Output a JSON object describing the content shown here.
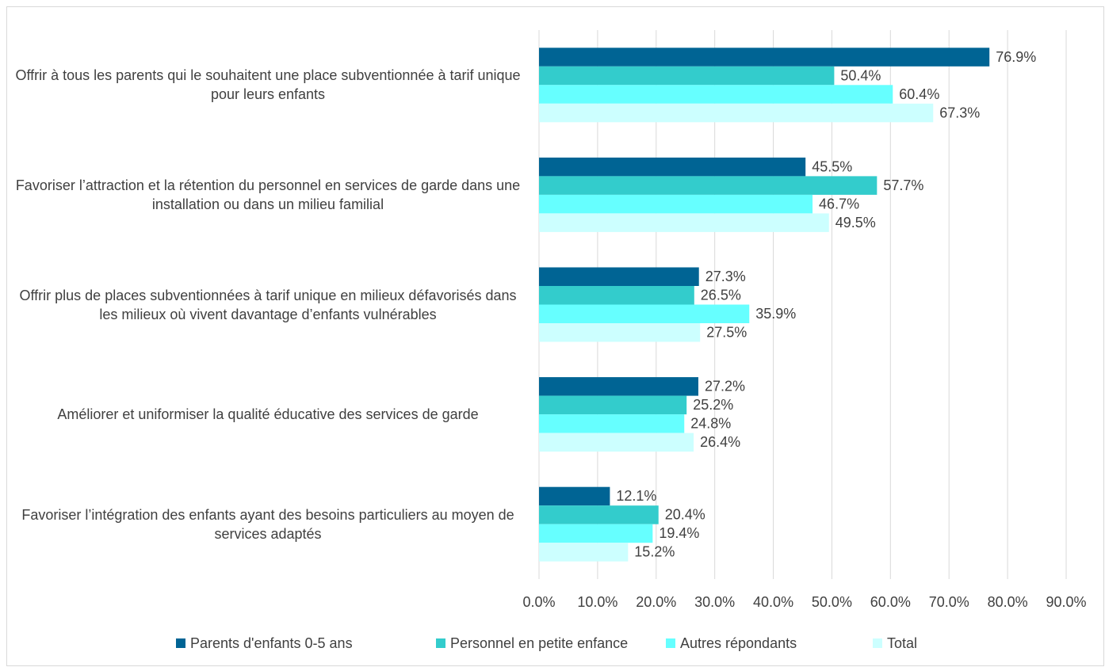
{
  "chart_data": {
    "type": "bar",
    "orientation": "horizontal",
    "categories": [
      "Offrir à tous les parents qui le souhaitent une place subventionnée à tarif unique pour leurs enfants",
      "Favoriser l’attraction et la rétention du personnel en services de garde dans une installation ou dans un milieu familial",
      "Offrir plus de places subventionnées à tarif unique en milieux défavorisés dans les milieux où vivent davantage d’enfants vulnérables",
      "Améliorer et uniformiser la qualité éducative des services de garde",
      "Favoriser l’intégration des enfants ayant des besoins particuliers au moyen de services adaptés"
    ],
    "series": [
      {
        "name": "Parents d'enfants 0-5 ans",
        "color": "#006494",
        "values": [
          76.9,
          45.5,
          27.3,
          27.2,
          12.1
        ],
        "value_labels": [
          "76.9%",
          "45.5%",
          "27.3%",
          "27.2%",
          "12.1%"
        ]
      },
      {
        "name": "Personnel en petite enfance",
        "color": "#33CCCC",
        "values": [
          50.4,
          57.7,
          26.5,
          25.2,
          20.4
        ],
        "value_labels": [
          "50.4%",
          "57.7%",
          "26.5%",
          "25.2%",
          "20.4%"
        ]
      },
      {
        "name": "Autres répondants",
        "color": "#66FFFF",
        "values": [
          60.4,
          46.7,
          35.9,
          24.8,
          19.4
        ],
        "value_labels": [
          "60.4%",
          "46.7%",
          "35.9%",
          "24.8%",
          "19.4%"
        ]
      },
      {
        "name": "Total",
        "color": "#CCFFFF",
        "values": [
          67.3,
          49.5,
          27.5,
          26.4,
          15.2
        ],
        "value_labels": [
          "67.3%",
          "49.5%",
          "27.5%",
          "26.4%",
          "15.2%"
        ]
      }
    ],
    "xlim": [
      0,
      90
    ],
    "xticks": [
      {
        "value": 0,
        "label": "0.0%"
      },
      {
        "value": 10,
        "label": "10.0%"
      },
      {
        "value": 20,
        "label": "20.0%"
      },
      {
        "value": 30,
        "label": "30.0%"
      },
      {
        "value": 40,
        "label": "40.0%"
      },
      {
        "value": 50,
        "label": "50.0%"
      },
      {
        "value": 60,
        "label": "60.0%"
      },
      {
        "value": 70,
        "label": "70.0%"
      },
      {
        "value": 80,
        "label": "80.0%"
      },
      {
        "value": 90,
        "label": "90.0%"
      }
    ],
    "grid": true,
    "legend": "bottom"
  }
}
